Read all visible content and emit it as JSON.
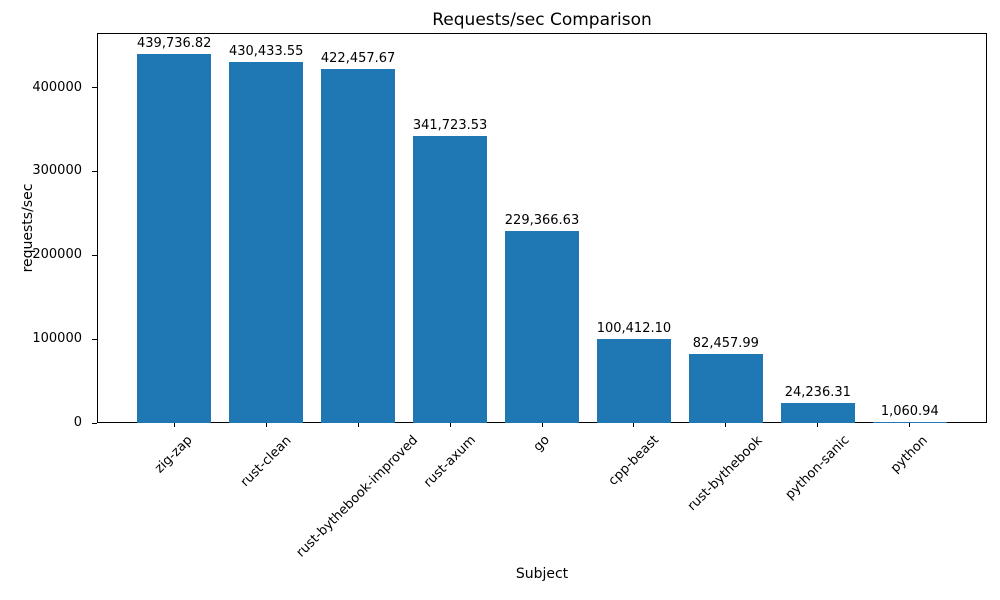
{
  "chart_data": {
    "type": "bar",
    "title": "Requests/sec Comparison",
    "xlabel": "Subject",
    "ylabel": "requests/sec",
    "categories": [
      "zig-zap",
      "rust-clean",
      "rust-bythebook-improved",
      "rust-axum",
      "go",
      "cpp-beast",
      "rust-bythebook",
      "python-sanic",
      "python"
    ],
    "values": [
      439736.82,
      430433.55,
      422457.67,
      341723.53,
      229366.63,
      100412.1,
      82457.99,
      24236.31,
      1060.94
    ],
    "value_labels": [
      "439,736.82",
      "430,433.55",
      "422,457.67",
      "341,723.53",
      "229,366.63",
      "100,412.10",
      "82,457.99",
      "24,236.31",
      "1,060.94"
    ],
    "yticks": [
      0,
      100000,
      200000,
      300000,
      400000
    ],
    "ytick_labels": [
      "0",
      "100000",
      "200000",
      "300000",
      "400000"
    ],
    "ylim": [
      0,
      465000
    ],
    "xtick_rotation_deg": 45,
    "bar_color": "#1f77b4",
    "grid": false,
    "legend_position": "none"
  }
}
